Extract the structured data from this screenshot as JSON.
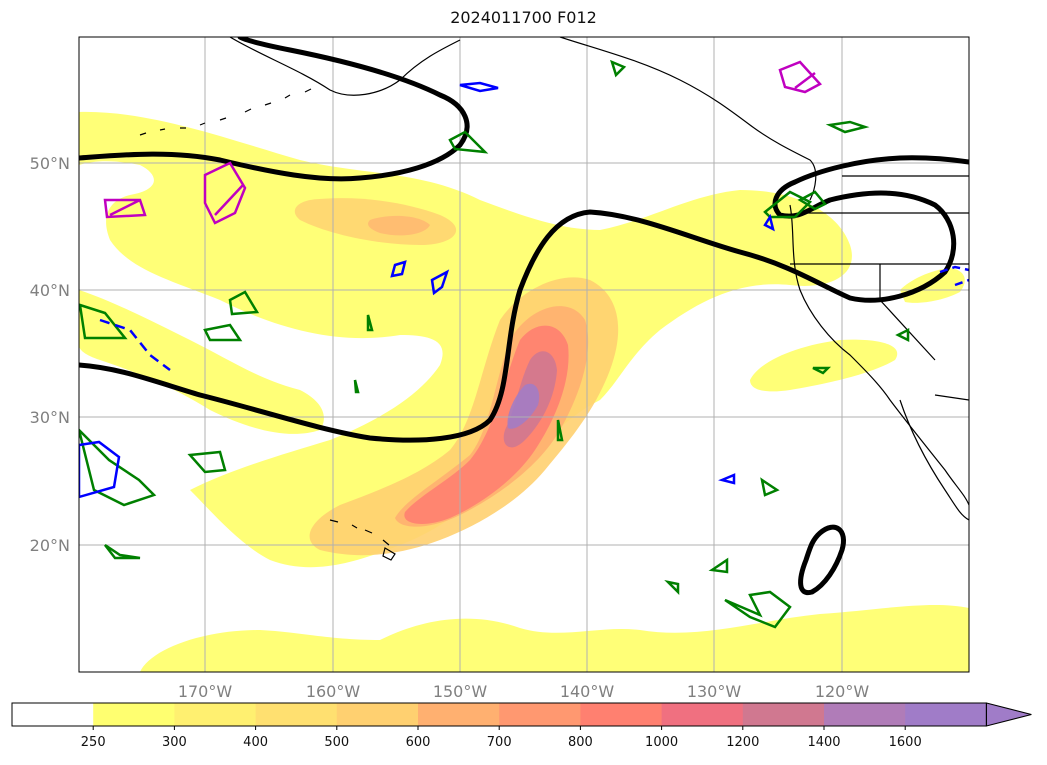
{
  "title": "2024011700 F012",
  "map": {
    "lat_labels": [
      "50°N",
      "40°N",
      "30°N",
      "20°N"
    ],
    "lon_labels": [
      "170°W",
      "160°W",
      "150°W",
      "140°W",
      "130°W",
      "120°W"
    ]
  },
  "colorbar": {
    "extend": "max",
    "labels": [
      "250",
      "300",
      "400",
      "500",
      "600",
      "700",
      "800",
      "1000",
      "1200",
      "1400",
      "1600"
    ],
    "colors": [
      "#ffffff",
      "#ffff70",
      "#fff070",
      "#ffe070",
      "#ffd070",
      "#ffb070",
      "#ff9870",
      "#ff8070",
      "#f07080",
      "#d07890",
      "#b07cb8",
      "#a07cc8"
    ]
  },
  "colors": {
    "high_contour": "#000000",
    "green_contour": "#008000",
    "blue_contour": "#0000ff",
    "magenta_contour": "#c000c0"
  }
}
